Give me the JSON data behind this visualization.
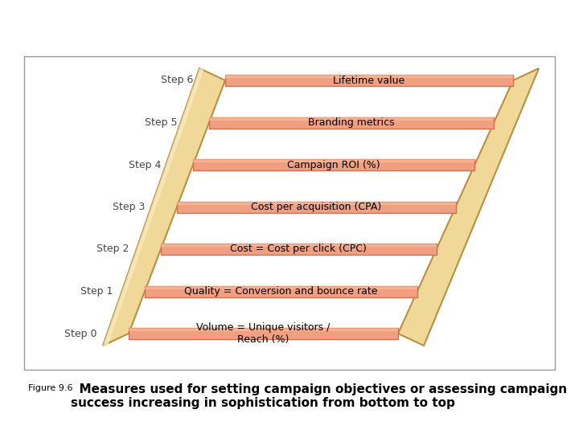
{
  "steps": [
    {
      "label": "Step 0",
      "text": "Volume = Unique visitors /\nReach (%)",
      "y": 0
    },
    {
      "label": "Step 1",
      "text": "Quality = Conversion and bounce rate",
      "y": 1
    },
    {
      "label": "Step 2",
      "text": "Cost = Cost per click (CPC)",
      "y": 2
    },
    {
      "label": "Step 3",
      "text": "Cost per acquisition (CPA)",
      "y": 3
    },
    {
      "label": "Step 4",
      "text": "Campaign ROI (%)",
      "y": 4
    },
    {
      "label": "Step 5",
      "text": "Branding metrics",
      "y": 5
    },
    {
      "label": "Step 6",
      "text": "Lifetime value",
      "y": 6
    }
  ],
  "rung_color": "#F0A080",
  "rung_edge_color": "#D07050",
  "rung_highlight": "#F8C0A0",
  "rail_color": "#F0D898",
  "rail_light": "#F8ECC0",
  "rail_edge_color": "#B89040",
  "bg_color": "#FFFFFF",
  "box_edge": "#999999",
  "caption_prefix": "Figure 9.6",
  "caption_bold": "  Measures used for setting campaign objectives or assessing campaign\nsuccess increasing in sophistication from bottom to top",
  "caption_prefix_size": 8,
  "caption_bold_size": 11
}
